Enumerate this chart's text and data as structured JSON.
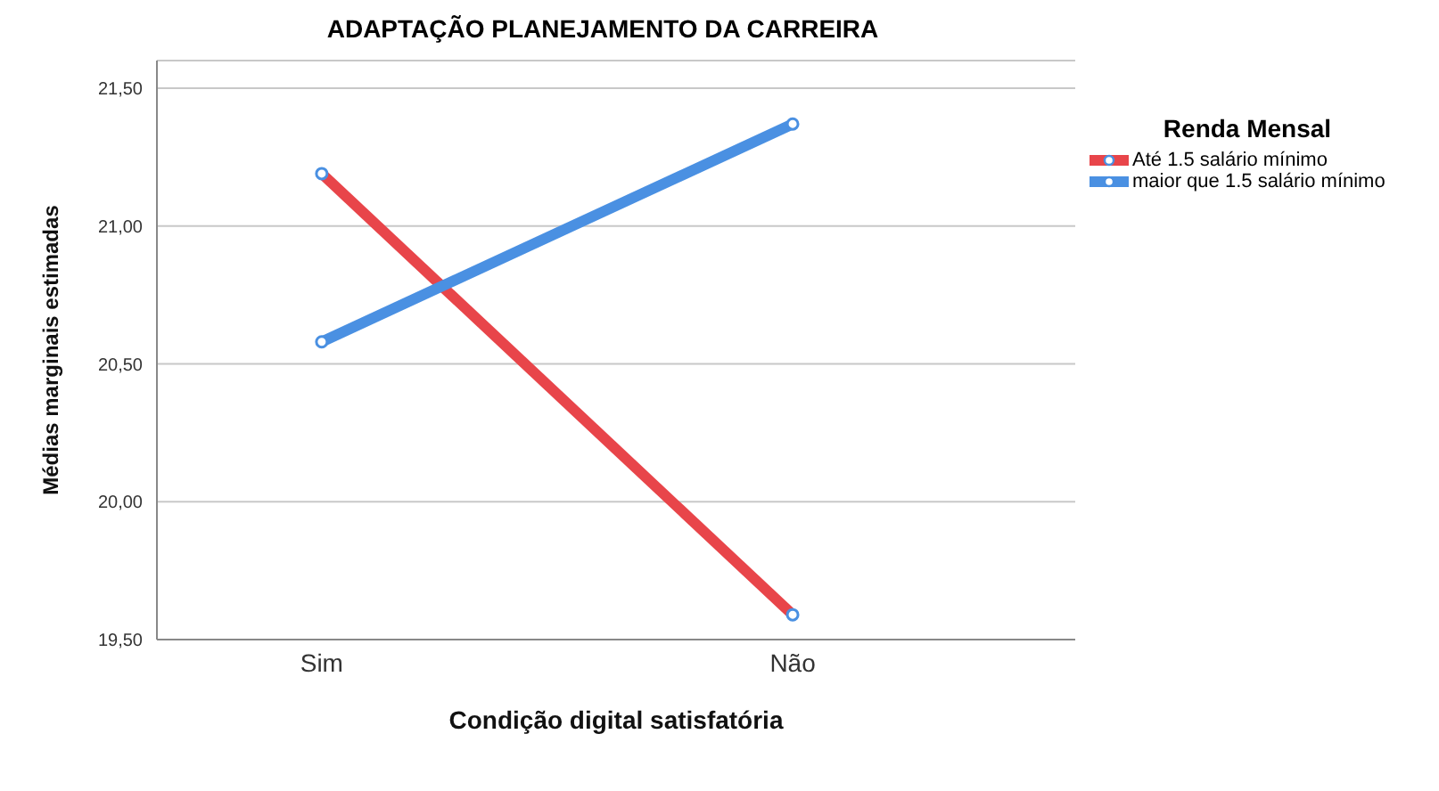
{
  "chart_data": {
    "type": "line",
    "title": "ADAPTAÇÃO PLANEJAMENTO DA CARREIRA",
    "xlabel": "Condição digital satisfatória",
    "ylabel": "Médias marginais estimadas",
    "legend_title": "Renda Mensal",
    "categories": [
      "Sim",
      "Não"
    ],
    "series": [
      {
        "name": "Até 1.5 salário mínimo",
        "color": "#e8454a",
        "values": [
          21.19,
          19.59
        ]
      },
      {
        "name": "maior que 1.5 salário mínimo",
        "color": "#4a90e2",
        "values": [
          20.58,
          21.37
        ]
      }
    ],
    "ylim": [
      19.5,
      21.6
    ],
    "yticks": [
      {
        "value": 19.5,
        "label": "19,50"
      },
      {
        "value": 20,
        "label": "20,00"
      },
      {
        "value": 20.5,
        "label": "20,50"
      },
      {
        "value": 21,
        "label": "21,00"
      },
      {
        "value": 21.5,
        "label": "21,50"
      }
    ],
    "grid": "y",
    "legend": "right",
    "marker": "circle",
    "line_style": "solid"
  }
}
